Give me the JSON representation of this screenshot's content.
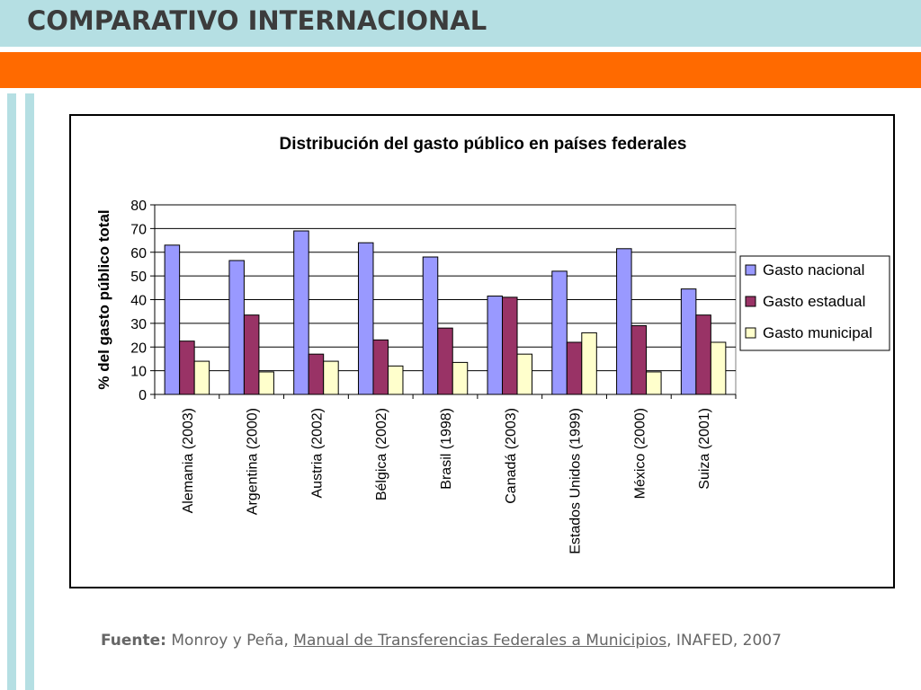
{
  "slide": {
    "title": "COMPARATIVO INTERNACIONAL",
    "colors": {
      "title_bar": "#b5dfe3",
      "accent_bar": "#ff6a00",
      "title_text": "#3c3c3c"
    }
  },
  "source": {
    "label": "Fuente:",
    "authors": "Monroy y Peña,",
    "book": "Manual de Transferencias Federales a Municipios",
    "rest": ", INAFED, 2007"
  },
  "chart_data": {
    "type": "bar",
    "title": "Distribución del gasto público en países federales",
    "xlabel": "",
    "ylabel": "% del gasto público total",
    "ylim": [
      0,
      80
    ],
    "yticks": [
      0,
      10,
      20,
      30,
      40,
      50,
      60,
      70,
      80
    ],
    "grid": true,
    "legend_position": "right",
    "categories": [
      "Alemania (2003)",
      "Argentina (2000)",
      "Austria (2002)",
      "Bélgica (2002)",
      "Brasil (1998)",
      "Canadá (2003)",
      "Estados Unidos (1999)",
      "México (2000)",
      "Suiza (2001)"
    ],
    "series": [
      {
        "name": "Gasto nacional",
        "color": "#9999ff",
        "values": [
          63,
          56.5,
          69,
          64,
          58,
          41.5,
          52,
          61.5,
          44.5
        ]
      },
      {
        "name": "Gasto estadual",
        "color": "#993366",
        "values": [
          22.5,
          33.5,
          17,
          23,
          28,
          41,
          22,
          29,
          33.5
        ]
      },
      {
        "name": "Gasto municipal",
        "color": "#ffffcc",
        "values": [
          14,
          9.5,
          14,
          12,
          13.5,
          17,
          26,
          9.5,
          22
        ]
      }
    ]
  }
}
